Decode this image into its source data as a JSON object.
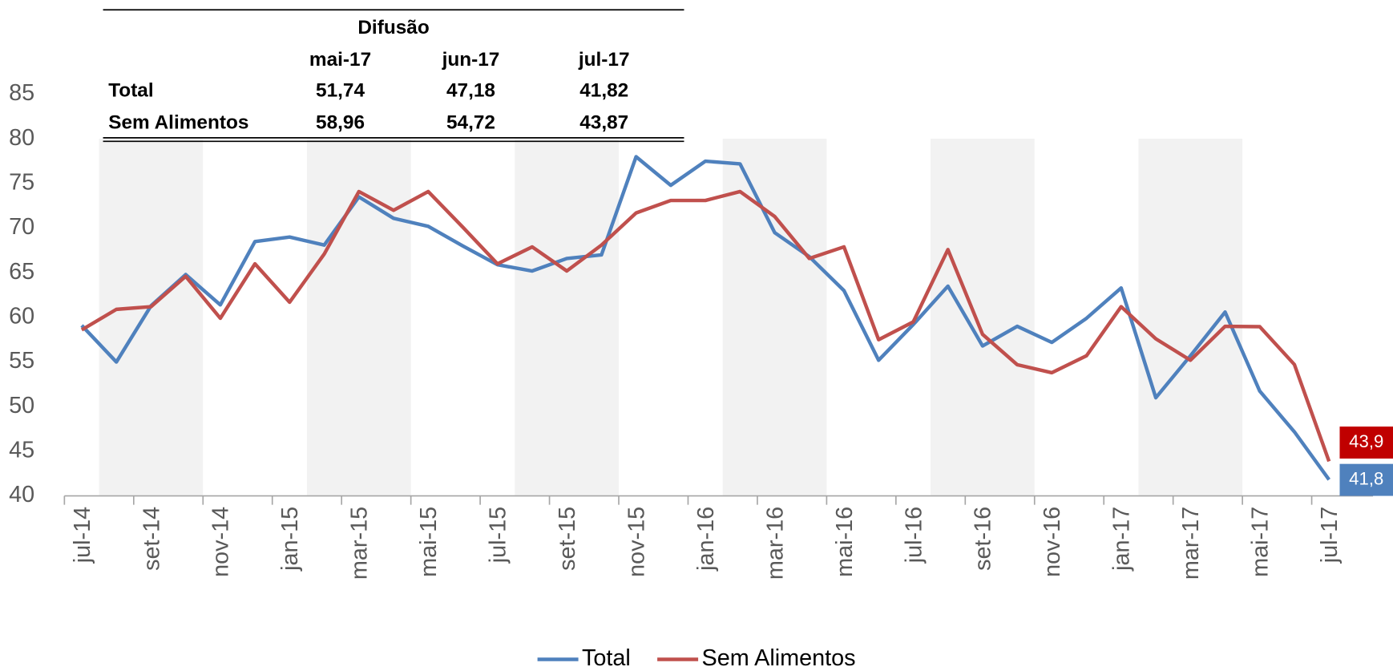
{
  "chart_data": {
    "type": "line",
    "categories": [
      "jul-14",
      null,
      "set-14",
      null,
      "nov-14",
      null,
      "jan-15",
      null,
      "mar-15",
      null,
      "mai-15",
      null,
      "jul-15",
      null,
      "set-15",
      null,
      "nov-15",
      null,
      "jan-16",
      null,
      "mar-16",
      null,
      "mai-16",
      null,
      "jul-16",
      null,
      "set-16",
      null,
      "nov-16",
      null,
      "jan-17",
      null,
      "mar-17",
      null,
      "mai-17",
      null,
      "jul-17"
    ],
    "series": [
      {
        "name": "Total",
        "color": "#4f81bd",
        "values": [
          59.1,
          55.0,
          61.3,
          64.8,
          61.4,
          68.5,
          69.0,
          68.1,
          73.5,
          71.1,
          70.2,
          68.0,
          65.9,
          65.2,
          66.6,
          67.0,
          78.0,
          74.8,
          77.5,
          77.2,
          69.5,
          66.8,
          63.0,
          55.2,
          59.2,
          63.5,
          56.8,
          59.0,
          57.2,
          59.9,
          63.3,
          51.0,
          55.7,
          60.6,
          51.74,
          47.18,
          41.82
        ],
        "value_labels": [
          null,
          null,
          null,
          null,
          null,
          null,
          null,
          null,
          null,
          null,
          null,
          null,
          null,
          null,
          null,
          null,
          null,
          null,
          null,
          null,
          null,
          null,
          null,
          null,
          null,
          null,
          null,
          null,
          null,
          null,
          null,
          null,
          null,
          null,
          null,
          null,
          "41,8"
        ],
        "label_color": "#4f81bd"
      },
      {
        "name": "Sem Alimentos",
        "color": "#c0504d",
        "values": [
          58.6,
          60.9,
          61.2,
          64.6,
          59.9,
          66.0,
          61.7,
          67.1,
          74.1,
          72.0,
          74.1,
          70.1,
          66.0,
          67.9,
          65.2,
          68.1,
          71.7,
          73.1,
          73.1,
          74.1,
          71.3,
          66.6,
          67.9,
          57.5,
          59.5,
          67.6,
          58.1,
          54.7,
          53.8,
          55.7,
          61.2,
          57.6,
          55.2,
          59.0,
          58.96,
          54.72,
          43.87
        ],
        "value_labels": [
          null,
          null,
          null,
          null,
          null,
          null,
          null,
          null,
          null,
          null,
          null,
          null,
          null,
          null,
          null,
          null,
          null,
          null,
          null,
          null,
          null,
          null,
          null,
          null,
          null,
          null,
          null,
          null,
          null,
          null,
          null,
          null,
          null,
          null,
          null,
          null,
          "43,9"
        ],
        "label_color": "#c00000"
      }
    ],
    "ylim": [
      40,
      85
    ],
    "yticks": [
      40,
      45,
      50,
      55,
      60,
      65,
      70,
      75,
      80,
      85
    ],
    "grid": false,
    "legend": "bottom"
  },
  "table": {
    "title": "Difusão",
    "columns": [
      "mai-17",
      "jun-17",
      "jul-17"
    ],
    "rows": [
      {
        "label": "Total",
        "values": [
          "51,74",
          "47,18",
          "41,82"
        ]
      },
      {
        "label": "Sem Alimentos",
        "values": [
          "58,96",
          "54,72",
          "43,87"
        ]
      }
    ]
  }
}
